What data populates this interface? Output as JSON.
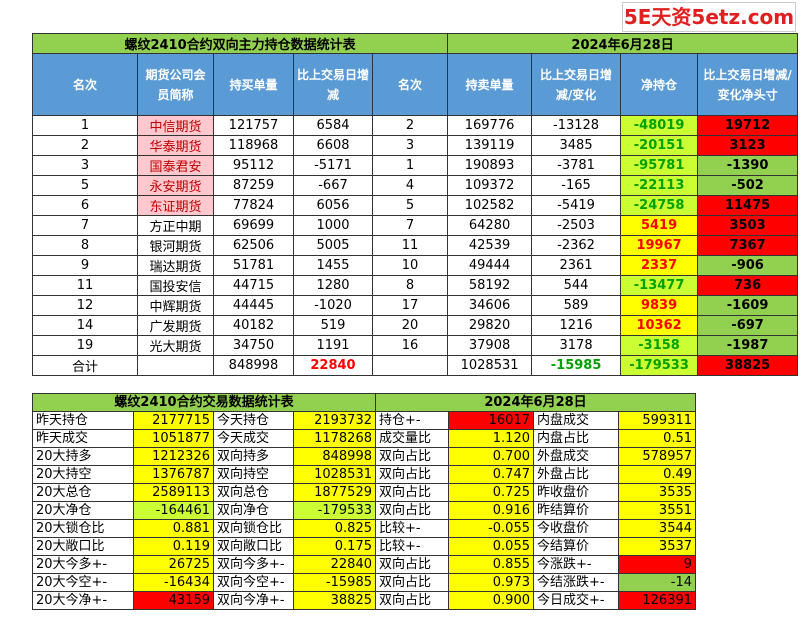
{
  "watermark": "5E天资5etz.com",
  "top": {
    "title": "螺纹2410合约双向主力持仓数据统计表",
    "date": "2024年6月28日",
    "headers": [
      "名次",
      "期货公司会员简称",
      "持买单量",
      "比上交易日增减",
      "名次",
      "持卖单量",
      "比上交易日增减/变化",
      "净持仓",
      "比上交易日增减/变化净头寸"
    ],
    "rows": [
      [
        1,
        "中信期货",
        121757,
        6584,
        2,
        169776,
        -13128,
        -48019,
        19712
      ],
      [
        2,
        "华泰期货",
        118968,
        6608,
        3,
        139119,
        3485,
        -20151,
        3123
      ],
      [
        3,
        "国泰君安",
        95112,
        -5171,
        1,
        190893,
        -3781,
        -95781,
        -1390
      ],
      [
        5,
        "永安期货",
        87259,
        -667,
        4,
        109372,
        -165,
        -22113,
        -502
      ],
      [
        6,
        "东证期货",
        77824,
        6056,
        5,
        102582,
        -5419,
        -24758,
        11475
      ],
      [
        7,
        "方正中期",
        69699,
        1000,
        7,
        64280,
        -2503,
        5419,
        3503
      ],
      [
        8,
        "银河期货",
        62506,
        5005,
        11,
        42539,
        -2362,
        19967,
        7367
      ],
      [
        9,
        "瑞达期货",
        51781,
        1455,
        10,
        49444,
        2361,
        2337,
        -906
      ],
      [
        11,
        "国投安信",
        44715,
        1280,
        8,
        58192,
        544,
        -13477,
        736
      ],
      [
        12,
        "中辉期货",
        44445,
        -1020,
        17,
        34606,
        589,
        9839,
        -1609
      ],
      [
        14,
        "广发期货",
        40182,
        519,
        20,
        29820,
        1216,
        10362,
        -697
      ],
      [
        19,
        "光大期货",
        34750,
        1191,
        16,
        37908,
        3178,
        -3158,
        -1987
      ]
    ],
    "total": [
      "合计",
      null,
      848998,
      22840,
      null,
      1028531,
      -15985,
      -179533,
      38825
    ]
  },
  "bottom": {
    "title": "螺纹2410合约交易数据统计表",
    "date": "2024年6月28日",
    "rows": [
      [
        "昨天持仓",
        2177715,
        "今天持仓",
        2193732,
        "持仓+-",
        16017,
        "内盘成交",
        599311
      ],
      [
        "昨天成交",
        1051877,
        "今天成交",
        1178268,
        "成交量比",
        "1.120",
        "内盘占比",
        0.51
      ],
      [
        "20大持多",
        1212326,
        "双向持多",
        848998,
        "双向占比",
        "0.700",
        "外盘成交",
        578957
      ],
      [
        "20大持空",
        1376787,
        "双向持空",
        1028531,
        "双向占比",
        0.747,
        "外盘占比",
        0.49
      ],
      [
        "20大总仓",
        2589113,
        "双向总仓",
        1877529,
        "双向占比",
        0.725,
        "昨收盘价",
        3535
      ],
      [
        "20大净仓",
        -164461,
        "双向净仓",
        -179533,
        "双向占比",
        0.916,
        "昨结算价",
        3551
      ],
      [
        "20大锁仓比",
        0.881,
        "双向锁仓比",
        0.825,
        "比较+-",
        -0.055,
        "今收盘价",
        3544
      ],
      [
        "20大敞口比",
        0.119,
        "双向敞口比",
        0.175,
        "比较+-",
        0.055,
        "今结算价",
        3537
      ],
      [
        "20大今多+-",
        26725,
        "双向今多+-",
        22840,
        "双向占比",
        0.855,
        "今涨跌+-",
        9
      ],
      [
        "20大今空+-",
        -16434,
        "双向今空+-",
        -15985,
        "双向占比",
        0.973,
        "今结涨跌+-",
        -14
      ],
      [
        "20大今净+-",
        43159,
        "双向今净+-",
        38825,
        "双向占比",
        "0.900",
        "今日成交+-",
        126391
      ]
    ]
  }
}
